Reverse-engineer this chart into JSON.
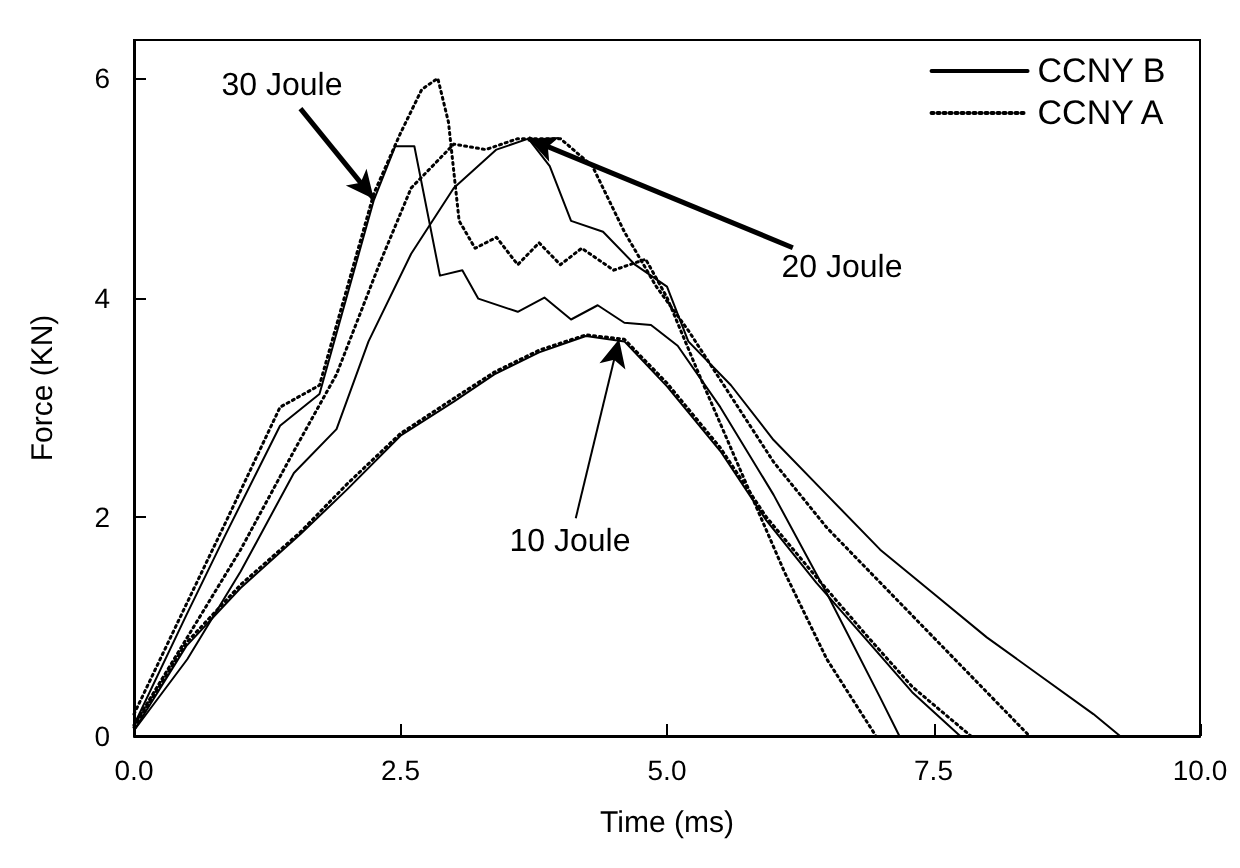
{
  "chart_data": {
    "type": "line",
    "xlabel": "Time (ms)",
    "ylabel": "Force (KN)",
    "xlim": [
      0,
      10
    ],
    "xticks": [
      {
        "value": 0,
        "label": "0.0"
      },
      {
        "value": 2.5,
        "label": "2.5"
      },
      {
        "value": 5,
        "label": "5.0"
      },
      {
        "value": 7.5,
        "label": "7.5"
      },
      {
        "value": 10,
        "label": "10.0"
      }
    ],
    "ylim": [
      0,
      6.35
    ],
    "yticks": [
      0,
      2,
      4,
      6
    ],
    "grid": false,
    "legend": "top right",
    "marker": "none",
    "series": [
      {
        "name": "CCNY B",
        "color": "#000000",
        "line_style": "solid",
        "x": [
          0,
          0.49,
          0.86,
          1.37,
          1.74,
          2.25,
          2.45,
          2.63,
          2.87,
          3.08,
          3.23,
          3.6,
          3.85,
          4.1,
          4.35,
          4.6,
          4.85,
          5.1,
          5.5,
          6.0,
          6.5,
          7.0,
          7.18
        ],
        "values": [
          0.1,
          1.1,
          1.84,
          2.83,
          3.12,
          4.89,
          5.38,
          5.38,
          4.2,
          4.25,
          3.99,
          3.87,
          4.0,
          3.8,
          3.93,
          3.77,
          3.75,
          3.56,
          3.0,
          2.2,
          1.3,
          0.35,
          0
        ]
      },
      {
        "name": "CCNY A",
        "color": "#000000",
        "line_style": "dotted",
        "x": [
          0,
          0.49,
          0.86,
          1.37,
          1.74,
          2.25,
          2.5,
          2.7,
          2.85,
          2.95,
          3.05,
          3.2,
          3.4,
          3.6,
          3.8,
          4.0,
          4.2,
          4.5,
          4.8,
          5.0,
          5.3,
          5.7,
          6.1,
          6.5,
          6.96
        ],
        "values": [
          0.2,
          1.2,
          1.95,
          3.0,
          3.2,
          4.95,
          5.5,
          5.9,
          6.0,
          5.6,
          4.7,
          4.45,
          4.55,
          4.3,
          4.5,
          4.3,
          4.45,
          4.25,
          4.35,
          4.0,
          3.3,
          2.4,
          1.5,
          0.7,
          0
        ]
      },
      {
        "color": "#000000",
        "line_style": "solid",
        "x": [
          0,
          0.5,
          1.0,
          1.5,
          1.9,
          2.2,
          2.6,
          3.0,
          3.4,
          3.7,
          3.9,
          4.1,
          4.4,
          4.7,
          5.0,
          5.2,
          5.6,
          6.0,
          6.5,
          7.0,
          7.5,
          8.0,
          8.5,
          9.0,
          9.25
        ],
        "values": [
          0.05,
          0.7,
          1.5,
          2.4,
          2.8,
          3.6,
          4.4,
          5.0,
          5.35,
          5.45,
          5.2,
          4.7,
          4.6,
          4.3,
          4.1,
          3.6,
          3.2,
          2.7,
          2.2,
          1.7,
          1.3,
          0.9,
          0.55,
          0.2,
          0
        ]
      },
      {
        "color": "#000000",
        "line_style": "dotted",
        "x": [
          0,
          0.5,
          1.0,
          1.5,
          1.9,
          2.3,
          2.6,
          3.0,
          3.3,
          3.6,
          4.0,
          4.3,
          4.6,
          4.9,
          5.2,
          5.6,
          6.0,
          6.5,
          7.0,
          7.5,
          8.0,
          8.4
        ],
        "values": [
          0.1,
          0.9,
          1.7,
          2.6,
          3.3,
          4.3,
          5.0,
          5.4,
          5.35,
          5.45,
          5.45,
          5.2,
          4.6,
          4.1,
          3.7,
          3.1,
          2.5,
          1.9,
          1.4,
          0.9,
          0.4,
          0
        ]
      },
      {
        "color": "#000000",
        "line_style": "solid",
        "x": [
          0,
          0.49,
          1.0,
          1.56,
          2.0,
          2.5,
          3.0,
          3.38,
          3.8,
          4.24,
          4.6,
          5.0,
          5.5,
          5.93,
          6.4,
          6.87,
          7.3,
          7.75
        ],
        "values": [
          0.05,
          0.82,
          1.35,
          1.84,
          2.25,
          2.74,
          3.05,
          3.3,
          3.5,
          3.65,
          3.6,
          3.19,
          2.6,
          1.97,
          1.4,
          0.88,
          0.4,
          0
        ]
      },
      {
        "color": "#000000",
        "line_style": "dotted",
        "x": [
          0,
          0.49,
          1.0,
          1.56,
          2.0,
          2.5,
          3.0,
          3.38,
          3.8,
          4.24,
          4.6,
          5.0,
          5.5,
          5.93,
          6.4,
          6.87,
          7.3,
          7.85
        ],
        "values": [
          0.08,
          0.85,
          1.38,
          1.86,
          2.3,
          2.76,
          3.08,
          3.32,
          3.52,
          3.66,
          3.62,
          3.22,
          2.63,
          2.0,
          1.45,
          0.92,
          0.45,
          0
        ]
      }
    ],
    "annotations": [
      {
        "text": "30 Joule",
        "x": 2.25,
        "y": 4.9
      },
      {
        "text": "20 Joule",
        "x": 3.7,
        "y": 5.45
      },
      {
        "text": "10 Joule",
        "x": 4.55,
        "y": 3.62
      }
    ]
  }
}
